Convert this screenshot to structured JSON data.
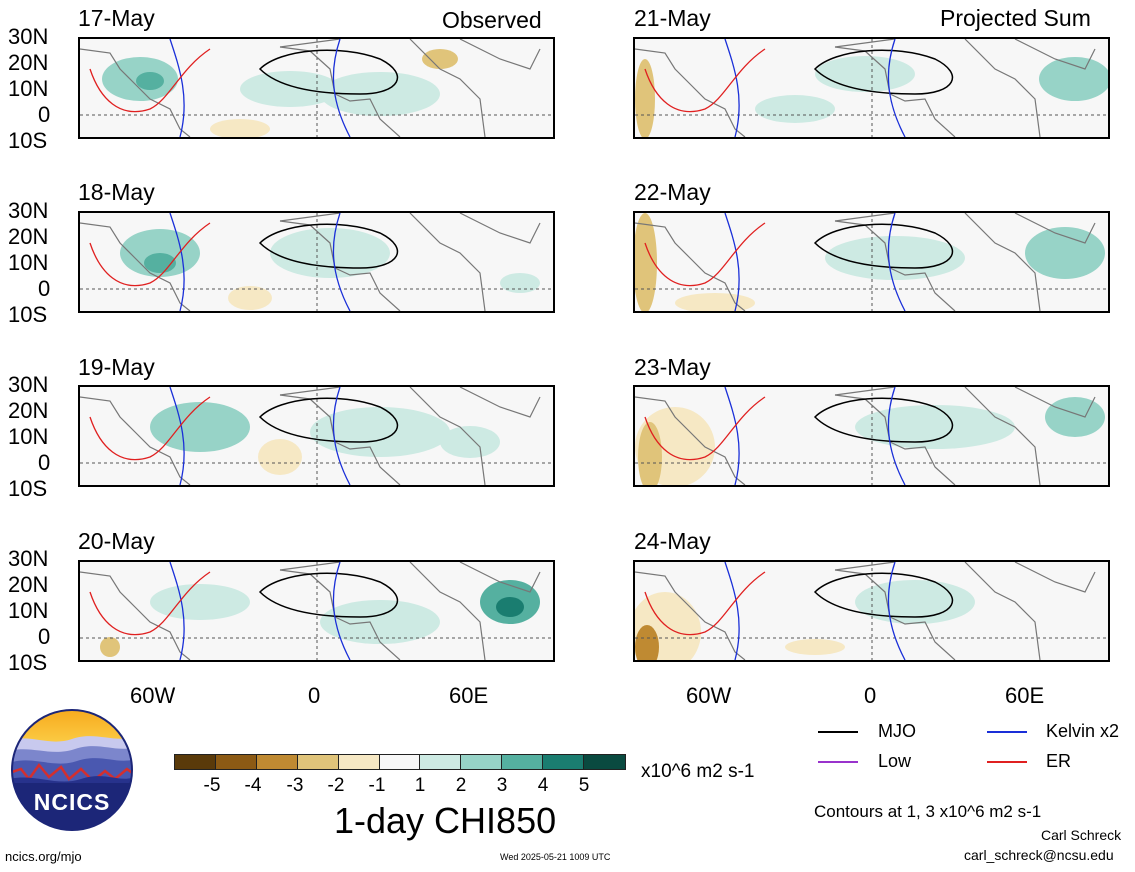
{
  "panels": [
    {
      "date": "17-May",
      "heading": "Observed"
    },
    {
      "date": "18-May",
      "heading": ""
    },
    {
      "date": "19-May",
      "heading": ""
    },
    {
      "date": "20-May",
      "heading": ""
    },
    {
      "date": "21-May",
      "heading": "Projected Sum"
    },
    {
      "date": "22-May",
      "heading": ""
    },
    {
      "date": "23-May",
      "heading": ""
    },
    {
      "date": "24-May",
      "heading": ""
    }
  ],
  "lat_labels": [
    "30N",
    "20N",
    "10N",
    "0",
    "10S"
  ],
  "lon_labels": [
    "60W",
    "0",
    "60E"
  ],
  "colorbar": {
    "colors": [
      "#5a3a0a",
      "#8c5a14",
      "#bf8a32",
      "#e0c47a",
      "#f6e8c4",
      "#f7f7f7",
      "#cdeae3",
      "#97d3c7",
      "#55b0a0",
      "#1a7d70",
      "#0a4a40"
    ],
    "labels": [
      "-5",
      "-4",
      "-3",
      "-2",
      "-1",
      "1",
      "2",
      "3",
      "4",
      "5"
    ],
    "units": "x10^6 m2 s-1",
    "title": "1-day CHI850"
  },
  "legend": {
    "items": [
      {
        "label": "MJO",
        "color": "#000000"
      },
      {
        "label": "Kelvin x2",
        "color": "#1a2fd8"
      },
      {
        "label": "Low",
        "color": "#9933cc"
      },
      {
        "label": "ER",
        "color": "#e02020"
      }
    ],
    "contours_note": "Contours at 1, 3 x10^6 m2 s-1"
  },
  "logo": {
    "text": "NCICS"
  },
  "footer": {
    "url": "ncics.org/mjo",
    "timestamp": "Wed 2025-05-21 1009 UTC",
    "author": "Carl Schreck",
    "email": "carl_schreck@ncsu.edu"
  }
}
